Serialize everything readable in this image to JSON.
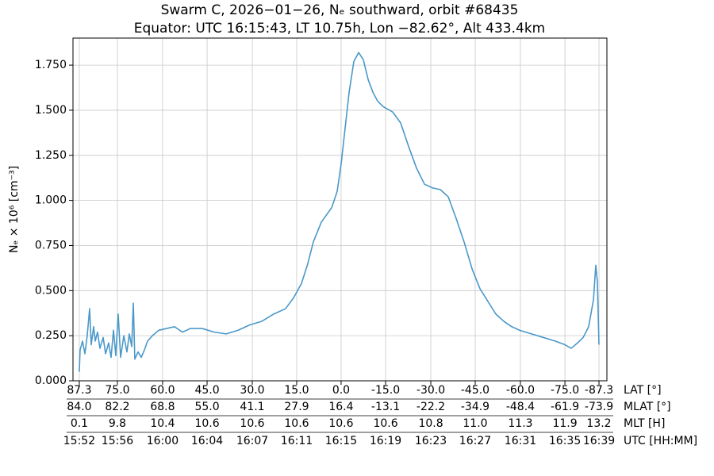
{
  "chart_data": {
    "type": "line",
    "title": "Swarm C, 2026−01−26, Nₑ southward, orbit #68435",
    "subtitle": "Equator: UTC 16:15:43, LT 10.75h, Lon −82.62°, Alt 433.4km",
    "ylabel": "Nₑ × 10⁶ [cm⁻³]",
    "xlabel": "UTC [HH:MM]",
    "grid": true,
    "xlim": [
      952.35,
      998.89
    ],
    "ylim": [
      0,
      1.9
    ],
    "xticks": [
      {
        "value": 952.9,
        "label": "15:52"
      },
      {
        "value": 956.22,
        "label": "15:56"
      },
      {
        "value": 960.16,
        "label": "16:00"
      },
      {
        "value": 964.04,
        "label": "16:04"
      },
      {
        "value": 967.98,
        "label": "16:07"
      },
      {
        "value": 971.85,
        "label": "16:11"
      },
      {
        "value": 975.72,
        "label": "16:15"
      },
      {
        "value": 979.6,
        "label": "16:19"
      },
      {
        "value": 983.54,
        "label": "16:23"
      },
      {
        "value": 987.41,
        "label": "16:27"
      },
      {
        "value": 991.35,
        "label": "16:31"
      },
      {
        "value": 995.23,
        "label": "16:35"
      },
      {
        "value": 998.2,
        "label": "16:39"
      }
    ],
    "x_tick_rows": [
      {
        "name": "LAT [°]",
        "labels": [
          "87.3",
          "75.0",
          "60.0",
          "45.0",
          "30.0",
          "15.0",
          "0.0",
          "-15.0",
          "-30.0",
          "-45.0",
          "-60.0",
          "-75.0",
          "-87.3"
        ]
      },
      {
        "name": "MLAT [°]",
        "labels": [
          "84.0",
          "82.2",
          "68.8",
          "55.0",
          "41.1",
          "27.9",
          "16.4",
          "-13.1",
          "-22.2",
          "-34.9",
          "-48.4",
          "-61.9",
          "-73.9"
        ]
      },
      {
        "name": "MLT [H]",
        "labels": [
          "0.1",
          "9.8",
          "10.4",
          "10.6",
          "10.6",
          "10.6",
          "10.6",
          "10.6",
          "10.8",
          "11.0",
          "11.3",
          "11.9",
          "13.2"
        ]
      }
    ],
    "yticks": [
      {
        "value": 0,
        "label": "0.000"
      },
      {
        "value": 0.25,
        "label": "0.250"
      },
      {
        "value": 0.5,
        "label": "0.500"
      },
      {
        "value": 0.75,
        "label": "0.750"
      },
      {
        "value": 1.0,
        "label": "1.000"
      },
      {
        "value": 1.25,
        "label": "1.250"
      },
      {
        "value": 1.5,
        "label": "1.500"
      },
      {
        "value": 1.75,
        "label": "1.750"
      }
    ],
    "series": [
      {
        "color": "#4a98c9",
        "x": [
          952.9,
          952.97,
          953.18,
          953.39,
          953.59,
          953.8,
          953.94,
          954.15,
          954.29,
          954.49,
          954.7,
          954.98,
          955.19,
          955.46,
          955.67,
          955.88,
          956.08,
          956.29,
          956.5,
          956.78,
          957.05,
          957.26,
          957.47,
          957.61,
          957.74,
          958.02,
          958.3,
          958.57,
          958.85,
          959.27,
          959.82,
          960.51,
          961.2,
          961.89,
          962.59,
          963.62,
          964.66,
          965.7,
          966.73,
          967.77,
          968.81,
          969.85,
          970.88,
          971.58,
          972.27,
          972.82,
          973.3,
          974.0,
          974.9,
          975.38,
          975.72,
          976.07,
          976.42,
          976.83,
          977.25,
          977.66,
          978.08,
          978.49,
          978.91,
          979.39,
          980.22,
          980.91,
          981.6,
          982.29,
          982.99,
          983.68,
          984.37,
          985.06,
          985.75,
          986.44,
          987.14,
          987.83,
          988.52,
          989.21,
          989.9,
          990.59,
          991.29,
          992.32,
          993.36,
          994.4,
          995.23,
          995.78,
          996.33,
          996.82,
          997.3,
          997.72,
          997.92,
          998.06,
          998.2
        ],
        "values": [
          0.05,
          0.17,
          0.22,
          0.15,
          0.25,
          0.4,
          0.2,
          0.3,
          0.22,
          0.27,
          0.18,
          0.24,
          0.15,
          0.21,
          0.13,
          0.28,
          0.14,
          0.37,
          0.13,
          0.25,
          0.16,
          0.26,
          0.19,
          0.43,
          0.12,
          0.16,
          0.13,
          0.17,
          0.22,
          0.25,
          0.28,
          0.29,
          0.3,
          0.27,
          0.29,
          0.29,
          0.27,
          0.26,
          0.28,
          0.31,
          0.33,
          0.37,
          0.4,
          0.46,
          0.54,
          0.65,
          0.77,
          0.88,
          0.96,
          1.05,
          1.2,
          1.4,
          1.6,
          1.77,
          1.82,
          1.78,
          1.67,
          1.6,
          1.55,
          1.52,
          1.49,
          1.43,
          1.3,
          1.18,
          1.09,
          1.07,
          1.06,
          1.02,
          0.9,
          0.77,
          0.62,
          0.51,
          0.44,
          0.37,
          0.33,
          0.3,
          0.28,
          0.26,
          0.24,
          0.22,
          0.2,
          0.18,
          0.21,
          0.24,
          0.3,
          0.45,
          0.64,
          0.55,
          0.2
        ]
      }
    ]
  }
}
